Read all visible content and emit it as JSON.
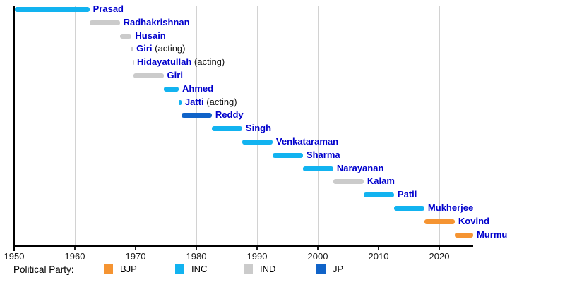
{
  "legend": {
    "title": "Political Party:",
    "items": [
      {
        "label": "BJP",
        "color": "#F59432"
      },
      {
        "label": "INC",
        "color": "#12B3F0"
      },
      {
        "label": "IND",
        "color": "#CBCBCB"
      },
      {
        "label": "JP",
        "color": "#1063C8"
      }
    ]
  },
  "chart_data": {
    "type": "bar",
    "variant": "gantt-timeline",
    "subject": "Presidents of India by term and political party",
    "title": "",
    "xlabel": "",
    "ylabel": "",
    "xlim": [
      1950,
      2025.7
    ],
    "x_ticks": [
      1950,
      1960,
      1970,
      1980,
      1990,
      2000,
      2010,
      2020
    ],
    "grid": "vertical",
    "legend_position": "bottom",
    "party_colors": {
      "BJP": "#F59432",
      "INC": "#12B3F0",
      "IND": "#CBCBCB",
      "JP": "#1063C8"
    },
    "bars": [
      {
        "name": "Prasad",
        "suffix": "",
        "party": "INC",
        "start": 1950.1,
        "end": 1962.4
      },
      {
        "name": "Radhakrishnan",
        "suffix": "",
        "party": "IND",
        "start": 1962.4,
        "end": 1967.4
      },
      {
        "name": "Husain",
        "suffix": "",
        "party": "IND",
        "start": 1967.4,
        "end": 1969.35
      },
      {
        "name": "Giri",
        "suffix": " (acting)",
        "party": "IND",
        "start": 1969.35,
        "end": 1969.55
      },
      {
        "name": "Hidayatullah",
        "suffix": " (acting)",
        "party": "IND",
        "start": 1969.55,
        "end": 1969.65
      },
      {
        "name": "Giri",
        "suffix": "",
        "party": "IND",
        "start": 1969.65,
        "end": 1974.6
      },
      {
        "name": "Ahmed",
        "suffix": "",
        "party": "INC",
        "start": 1974.6,
        "end": 1977.1
      },
      {
        "name": "Jatti",
        "suffix": " (acting)",
        "party": "INC",
        "start": 1977.1,
        "end": 1977.55
      },
      {
        "name": "Reddy",
        "suffix": "",
        "party": "JP",
        "start": 1977.55,
        "end": 1982.55
      },
      {
        "name": "Singh",
        "suffix": "",
        "party": "INC",
        "start": 1982.55,
        "end": 1987.55
      },
      {
        "name": "Venkataraman",
        "suffix": "",
        "party": "INC",
        "start": 1987.55,
        "end": 1992.55
      },
      {
        "name": "Sharma",
        "suffix": "",
        "party": "INC",
        "start": 1992.55,
        "end": 1997.55
      },
      {
        "name": "Narayanan",
        "suffix": "",
        "party": "INC",
        "start": 1997.55,
        "end": 2002.55
      },
      {
        "name": "Kalam",
        "suffix": "",
        "party": "IND",
        "start": 2002.55,
        "end": 2007.55
      },
      {
        "name": "Patil",
        "suffix": "",
        "party": "INC",
        "start": 2007.55,
        "end": 2012.55
      },
      {
        "name": "Mukherjee",
        "suffix": "",
        "party": "INC",
        "start": 2012.55,
        "end": 2017.55
      },
      {
        "name": "Kovind",
        "suffix": "",
        "party": "BJP",
        "start": 2017.55,
        "end": 2022.55
      },
      {
        "name": "Murmu",
        "suffix": "",
        "party": "BJP",
        "start": 2022.55,
        "end": 2025.6
      }
    ]
  },
  "colors": {
    "name_label": "#0000CC",
    "suffix_label": "#111111",
    "axis": "#000000",
    "gridline": "#D2D2D2",
    "tick_label": "#1A1A1A"
  }
}
